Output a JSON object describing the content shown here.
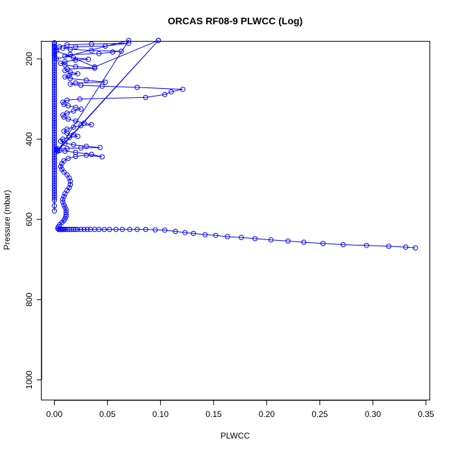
{
  "chart_data": {
    "type": "scatter",
    "title": "ORCAS RF08-9 PLWCC (Log)",
    "xlabel": "PLWCC",
    "ylabel": "Pressure (mbar)",
    "xlim": [
      -0.012,
      0.354
    ],
    "ylim": [
      1051,
      157
    ],
    "y_reversed": true,
    "grid": false,
    "legend": "none",
    "color": "#0000ff",
    "x_ticks": [
      {
        "value": 0.0,
        "label": "0.00"
      },
      {
        "value": 0.05,
        "label": "0.05"
      },
      {
        "value": 0.1,
        "label": "0.10"
      },
      {
        "value": 0.15,
        "label": "0.15"
      },
      {
        "value": 0.2,
        "label": "0.20"
      },
      {
        "value": 0.25,
        "label": "0.25"
      },
      {
        "value": 0.3,
        "label": "0.30"
      },
      {
        "value": 0.35,
        "label": "0.35"
      }
    ],
    "y_ticks": [
      {
        "value": 200,
        "label": "200"
      },
      {
        "value": 400,
        "label": "400"
      },
      {
        "value": 600,
        "label": "600"
      },
      {
        "value": 800,
        "label": "800"
      },
      {
        "value": 1000,
        "label": "1000"
      }
    ],
    "series": [
      {
        "points": [
          [
            0.34,
            671
          ],
          [
            0.331,
            669
          ],
          [
            0.315,
            667
          ],
          [
            0.294,
            665
          ],
          [
            0.272,
            663
          ],
          [
            0.253,
            660
          ],
          [
            0.235,
            657
          ],
          [
            0.22,
            654
          ],
          [
            0.204,
            651
          ],
          [
            0.189,
            648
          ],
          [
            0.176,
            645
          ],
          [
            0.163,
            643
          ],
          [
            0.152,
            640
          ],
          [
            0.142,
            638
          ],
          [
            0.131,
            635
          ],
          [
            0.123,
            633
          ],
          [
            0.114,
            630
          ],
          [
            0.104,
            627
          ],
          [
            0.095,
            626
          ],
          [
            0.086,
            625
          ],
          [
            0.078,
            625
          ],
          [
            0.071,
            625
          ],
          [
            0.064,
            625
          ],
          [
            0.058,
            625
          ],
          [
            0.052,
            625
          ],
          [
            0.047,
            625
          ],
          [
            0.042,
            625
          ],
          [
            0.038,
            625
          ],
          [
            0.034,
            625
          ],
          [
            0.031,
            625
          ],
          [
            0.028,
            625
          ],
          [
            0.025,
            625
          ],
          [
            0.022,
            625
          ],
          [
            0.02,
            625
          ],
          [
            0.018,
            625
          ],
          [
            0.016,
            625
          ],
          [
            0.014,
            625
          ],
          [
            0.012,
            625
          ],
          [
            0.01,
            625
          ],
          [
            0.009,
            625
          ],
          [
            0.008,
            625
          ],
          [
            0.007,
            625
          ],
          [
            0.006,
            625
          ],
          [
            0.005,
            625
          ],
          [
            0.004,
            625
          ],
          [
            0.003,
            622
          ],
          [
            0.004,
            618
          ],
          [
            0.005,
            613
          ],
          [
            0.007,
            608
          ],
          [
            0.009,
            603
          ],
          [
            0.01,
            598
          ],
          [
            0.011,
            593
          ],
          [
            0.011,
            588
          ],
          [
            0.011,
            582
          ],
          [
            0.011,
            576
          ],
          [
            0.01,
            570
          ],
          [
            0.009,
            564
          ],
          [
            0.008,
            557
          ],
          [
            0.008,
            550
          ],
          [
            0.009,
            543
          ],
          [
            0.01,
            536
          ],
          [
            0.012,
            528
          ],
          [
            0.014,
            521
          ],
          [
            0.015,
            513
          ],
          [
            0.015,
            505
          ],
          [
            0.014,
            497
          ],
          [
            0.012,
            489
          ],
          [
            0.009,
            482
          ],
          [
            0.007,
            475
          ],
          [
            0.006,
            468
          ],
          [
            0.007,
            461
          ],
          [
            0.009,
            454
          ],
          [
            0.013,
            448
          ],
          [
            0.02,
            443
          ],
          [
            0.03,
            440
          ],
          [
            0.045,
            444
          ],
          [
            0.035,
            438
          ],
          [
            0.02,
            433
          ],
          [
            0.01,
            430
          ],
          [
            0.005,
            428
          ],
          [
            0.002,
            426
          ],
          [
            0.003,
            424
          ],
          [
            0.012,
            423
          ],
          [
            0.025,
            422
          ],
          [
            0.043,
            421
          ],
          [
            0.03,
            418
          ],
          [
            0.018,
            414
          ],
          [
            0.01,
            410
          ],
          [
            0.006,
            405
          ],
          [
            0.008,
            400
          ],
          [
            0.014,
            396
          ],
          [
            0.022,
            393
          ],
          [
            0.018,
            389
          ],
          [
            0.012,
            385
          ],
          [
            0.009,
            380
          ],
          [
            0.012,
            375
          ],
          [
            0.018,
            370
          ],
          [
            0.025,
            366
          ],
          [
            0.035,
            364
          ],
          [
            0.028,
            360
          ],
          [
            0.02,
            355
          ],
          [
            0.013,
            350
          ],
          [
            0.009,
            345
          ],
          [
            0.008,
            340
          ],
          [
            0.012,
            335
          ],
          [
            0.018,
            330
          ],
          [
            0.025,
            325
          ],
          [
            0.02,
            321
          ],
          [
            0.013,
            317
          ],
          [
            0.009,
            313
          ],
          [
            0.008,
            308
          ],
          [
            0.012,
            303
          ],
          [
            0.024,
            300
          ],
          [
            0.086,
            296
          ],
          [
            0.104,
            289
          ],
          [
            0.11,
            282
          ],
          [
            0.121,
            276
          ],
          [
            0.078,
            271
          ],
          [
            0.045,
            268
          ],
          [
            0.025,
            266
          ],
          [
            0.015,
            263
          ],
          [
            0.02,
            260
          ],
          [
            0.048,
            258
          ],
          [
            0.03,
            253
          ],
          [
            0.015,
            249
          ],
          [
            0.01,
            245
          ],
          [
            0.014,
            241
          ],
          [
            0.022,
            237
          ],
          [
            0.015,
            233
          ],
          [
            0.01,
            229
          ],
          [
            0.012,
            225
          ],
          [
            0.038,
            223
          ],
          [
            0.02,
            219
          ],
          [
            0.01,
            215
          ],
          [
            0.006,
            211
          ],
          [
            0.01,
            207
          ],
          [
            0.02,
            203
          ],
          [
            0.032,
            201
          ],
          [
            0.018,
            197
          ],
          [
            0.01,
            193
          ],
          [
            0.015,
            189
          ],
          [
            0.042,
            187
          ],
          [
            0.055,
            183
          ],
          [
            0.063,
            181
          ],
          [
            0.035,
            179
          ],
          [
            0.015,
            176
          ],
          [
            0.008,
            173
          ],
          [
            0.02,
            170
          ],
          [
            0.048,
            168
          ],
          [
            0.07,
            161
          ],
          [
            0.035,
            163
          ],
          [
            0.012,
            165
          ],
          [
            0.005,
            170
          ],
          [
            0.002,
            180
          ],
          [
            0.038,
            220
          ],
          [
            0.098,
            154
          ],
          [
            0.003,
            428
          ],
          [
            0.098,
            154
          ],
          [
            0.003,
            430
          ],
          [
            0.07,
            154
          ],
          [
            0.002,
            200
          ]
        ],
        "column_points_x": 0.0,
        "column_points": [
          160,
          164,
          168,
          172,
          176,
          180,
          184,
          188,
          192,
          196,
          200,
          205,
          210,
          216,
          222,
          228,
          234,
          240,
          246,
          252,
          258,
          264,
          270,
          276,
          282,
          288,
          294,
          300,
          306,
          312,
          318,
          324,
          330,
          336,
          342,
          348,
          354,
          360,
          366,
          372,
          378,
          384,
          390,
          396,
          402,
          408,
          414,
          420,
          426,
          432,
          438,
          444,
          450,
          456,
          462,
          468,
          474,
          480,
          486,
          492,
          498,
          504,
          510,
          516,
          522,
          528,
          534,
          540,
          546,
          552,
          566,
          579
        ]
      }
    ]
  }
}
